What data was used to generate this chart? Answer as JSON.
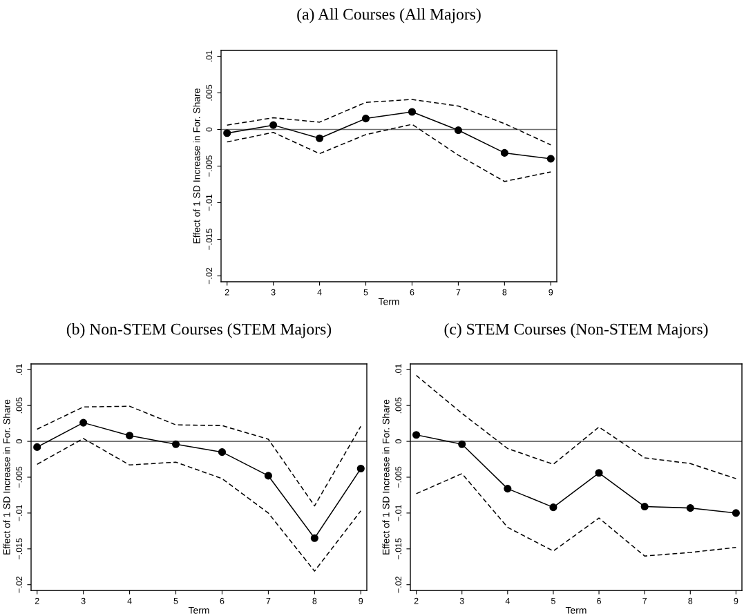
{
  "chart_data": [
    {
      "type": "line",
      "title": "(a) All Courses (All Majors)",
      "xlabel": "Term",
      "ylabel": "Effect of 1 SD Increase in For. Share",
      "x": [
        2,
        3,
        4,
        5,
        6,
        7,
        8,
        9
      ],
      "xlim": [
        1.87,
        9.13
      ],
      "xticks": [
        2,
        3,
        4,
        5,
        6,
        7,
        8,
        9
      ],
      "ylim": [
        -0.0208,
        0.0108
      ],
      "yticks": [
        {
          "value": -0.02,
          "label": "−.02"
        },
        {
          "value": -0.015,
          "label": "−.015"
        },
        {
          "value": -0.01,
          "label": "−.01"
        },
        {
          "value": -0.005,
          "label": "−.005"
        },
        {
          "value": 0,
          "label": "0"
        },
        {
          "value": 0.005,
          "label": ".005"
        },
        {
          "value": 0.01,
          "label": ".01"
        }
      ],
      "grid": false,
      "legend": false,
      "ref_lines": [
        {
          "axis": "y",
          "value": 0,
          "color": "#6e6e6e",
          "line_style": "solid"
        }
      ],
      "series": [
        {
          "color": "#000000",
          "marker": "circle",
          "line_style": "solid",
          "values": [
            -0.0005,
            0.0006,
            -0.0012,
            0.0015,
            0.0024,
            -0.0001,
            -0.0032,
            -0.004
          ]
        },
        {
          "color": "#000000",
          "marker": "none",
          "line_style": "dashed",
          "values": [
            0.0006,
            0.0016,
            0.001,
            0.0037,
            0.0041,
            0.0032,
            0.0008,
            -0.0021
          ]
        },
        {
          "color": "#000000",
          "marker": "none",
          "line_style": "dashed",
          "values": [
            -0.0017,
            -0.0004,
            -0.0033,
            -0.0007,
            0.0007,
            -0.0035,
            -0.0071,
            -0.0058
          ]
        }
      ]
    },
    {
      "type": "line",
      "title": "(b) Non-STEM Courses (STEM Majors)",
      "xlabel": "Term",
      "ylabel": "Effect of 1 SD Increase in For. Share",
      "x": [
        2,
        3,
        4,
        5,
        6,
        7,
        8,
        9
      ],
      "xlim": [
        1.87,
        9.13
      ],
      "xticks": [
        2,
        3,
        4,
        5,
        6,
        7,
        8,
        9
      ],
      "ylim": [
        -0.0208,
        0.0108
      ],
      "yticks": [
        {
          "value": -0.02,
          "label": "−.02"
        },
        {
          "value": -0.015,
          "label": "−.015"
        },
        {
          "value": -0.01,
          "label": "−.01"
        },
        {
          "value": -0.005,
          "label": "−.005"
        },
        {
          "value": 0,
          "label": "0"
        },
        {
          "value": 0.005,
          "label": ".005"
        },
        {
          "value": 0.01,
          "label": ".01"
        }
      ],
      "grid": false,
      "legend": false,
      "ref_lines": [
        {
          "axis": "y",
          "value": 0,
          "color": "#6e6e6e",
          "line_style": "solid"
        }
      ],
      "series": [
        {
          "color": "#000000",
          "marker": "circle",
          "line_style": "solid",
          "values": [
            -0.0008,
            0.0026,
            0.0008,
            -0.0004,
            -0.0015,
            -0.0048,
            -0.0135,
            -0.0038
          ]
        },
        {
          "color": "#000000",
          "marker": "none",
          "line_style": "dashed",
          "values": [
            0.0017,
            0.0048,
            0.0049,
            0.0023,
            0.0022,
            0.0003,
            -0.009,
            0.0021
          ]
        },
        {
          "color": "#000000",
          "marker": "none",
          "line_style": "dashed",
          "values": [
            -0.0032,
            0.0004,
            -0.0033,
            -0.0029,
            -0.0052,
            -0.01,
            -0.0181,
            -0.0097
          ]
        }
      ]
    },
    {
      "type": "line",
      "title": "(c) STEM Courses (Non-STEM Majors)",
      "xlabel": "Term",
      "ylabel": "Effect of 1 SD Increase in For. Share",
      "x": [
        2,
        3,
        4,
        5,
        6,
        7,
        8,
        9
      ],
      "xlim": [
        1.87,
        9.13
      ],
      "xticks": [
        2,
        3,
        4,
        5,
        6,
        7,
        8,
        9
      ],
      "ylim": [
        -0.0208,
        0.0108
      ],
      "yticks": [
        {
          "value": -0.02,
          "label": "−.02"
        },
        {
          "value": -0.015,
          "label": "−.015"
        },
        {
          "value": -0.01,
          "label": "−.01"
        },
        {
          "value": -0.005,
          "label": "−.005"
        },
        {
          "value": 0,
          "label": "0"
        },
        {
          "value": 0.005,
          "label": ".005"
        },
        {
          "value": 0.01,
          "label": ".01"
        }
      ],
      "grid": false,
      "legend": false,
      "ref_lines": [
        {
          "axis": "y",
          "value": 0,
          "color": "#6e6e6e",
          "line_style": "solid"
        }
      ],
      "series": [
        {
          "color": "#000000",
          "marker": "circle",
          "line_style": "solid",
          "values": [
            0.0009,
            -0.0004,
            -0.0066,
            -0.0092,
            -0.0044,
            -0.0091,
            -0.0093,
            -0.01
          ]
        },
        {
          "color": "#000000",
          "marker": "none",
          "line_style": "dashed",
          "values": [
            0.0092,
            0.0039,
            -0.001,
            -0.0032,
            0.002,
            -0.0023,
            -0.0031,
            -0.0052
          ]
        },
        {
          "color": "#000000",
          "marker": "none",
          "line_style": "dashed",
          "values": [
            -0.0073,
            -0.0045,
            -0.012,
            -0.0153,
            -0.0107,
            -0.016,
            -0.0155,
            -0.0148
          ]
        }
      ]
    }
  ]
}
